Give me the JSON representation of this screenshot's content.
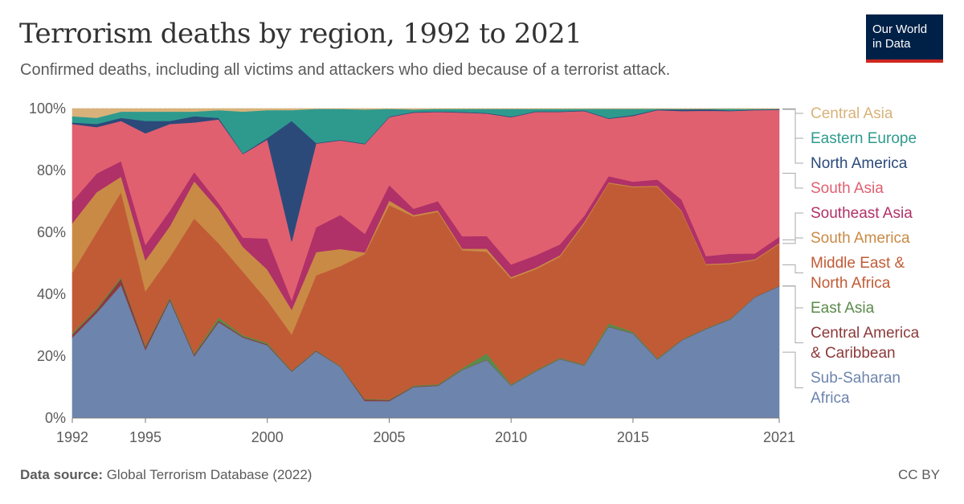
{
  "header": {
    "title": "Terrorism deaths by region, 1992 to 2021",
    "subtitle": "Confirmed deaths, including all victims and attackers who died because of a terrorist attack.",
    "logo_line1": "Our World",
    "logo_line2": "in Data"
  },
  "footer": {
    "source_label": "Data source:",
    "source_text": " Global Terrorism Database (2022)",
    "license": "CC BY"
  },
  "colors": {
    "Sub-Saharan Africa": "#6d84ad",
    "Central America & Caribbean": "#8c3a3a",
    "East Asia": "#5b8a4a",
    "Middle East & North Africa": "#c15b36",
    "South America": "#c98a45",
    "Southeast Asia": "#b03068",
    "South Asia": "#e06070",
    "North America": "#2b4a7a",
    "Eastern Europe": "#2e9a8e",
    "Central Asia": "#d8b27a"
  },
  "chart_data": {
    "type": "area",
    "stacked": true,
    "normalized": true,
    "x": [
      1992,
      1993,
      1994,
      1995,
      1996,
      1997,
      1998,
      1999,
      2000,
      2001,
      2002,
      2003,
      2004,
      2005,
      2006,
      2007,
      2008,
      2009,
      2010,
      2011,
      2012,
      2013,
      2014,
      2015,
      2016,
      2017,
      2018,
      2019,
      2020,
      2021
    ],
    "xticks": [
      "1992",
      "1995",
      "2000",
      "2005",
      "2010",
      "2015",
      "2021"
    ],
    "yticks": [
      "0%",
      "20%",
      "40%",
      "60%",
      "80%",
      "100%"
    ],
    "ylim": [
      0,
      100
    ],
    "series": [
      {
        "name": "Sub-Saharan Africa",
        "label_lines": [
          "Sub-Saharan",
          "Africa"
        ],
        "values": [
          26,
          34,
          43,
          22,
          38,
          20,
          31,
          26,
          23.5,
          15,
          21.5,
          16.5,
          5.5,
          5.5,
          10,
          10.5,
          15.5,
          18.5,
          10.5,
          15,
          19,
          17,
          29.5,
          27.5,
          19,
          25,
          28.5,
          32,
          39,
          42
        ]
      },
      {
        "name": "Central America & Caribbean",
        "label_lines": [
          "Central America",
          "& Caribbean"
        ],
        "values": [
          1,
          1,
          2,
          1,
          0.5,
          0.5,
          0.5,
          0.3,
          0.3,
          0.2,
          0.2,
          0.1,
          0.5,
          0.3,
          0.2,
          0.2,
          0.1,
          0.1,
          0.1,
          0.1,
          0.1,
          0.1,
          0.1,
          0.1,
          0.1,
          0.1,
          0.1,
          0.1,
          0.1,
          0.1
        ]
      },
      {
        "name": "East Asia",
        "label_lines": [
          "East Asia"
        ],
        "values": [
          0.5,
          0.5,
          0.5,
          0.5,
          0.5,
          0.5,
          1,
          0.5,
          0.5,
          0.2,
          0.2,
          0.2,
          0.2,
          0.2,
          0.3,
          0.3,
          0.5,
          2,
          0.3,
          0.3,
          0.3,
          0.3,
          1,
          0.5,
          0.3,
          0.2,
          0.2,
          0.2,
          0.1,
          0.1
        ]
      },
      {
        "name": "Middle East & North Africa",
        "label_lines": [
          "Middle East &",
          "North Africa"
        ],
        "values": [
          19.5,
          24.5,
          27.5,
          17.5,
          13,
          43.5,
          24,
          20.5,
          13.7,
          11.6,
          24.1,
          32.2,
          46.8,
          63,
          54.5,
          56,
          38,
          32.4,
          34.1,
          32.6,
          32.6,
          45.6,
          45.4,
          47,
          55.6,
          41.2,
          20.2,
          17.7,
          11.8,
          13.3
        ]
      },
      {
        "name": "South America",
        "label_lines": [
          "South America"
        ],
        "values": [
          16,
          13,
          5,
          10,
          10,
          12,
          11,
          8,
          10,
          8,
          7.5,
          5.5,
          0.5,
          1.5,
          0.5,
          0.5,
          0.5,
          1,
          0.5,
          0.5,
          0.5,
          0.5,
          0.3,
          0.3,
          0.3,
          0.3,
          0.3,
          0.3,
          0.3,
          0.3
        ]
      },
      {
        "name": "Southeast Asia",
        "label_lines": [
          "Southeast Asia"
        ],
        "values": [
          7,
          6,
          5,
          5,
          5,
          3,
          2,
          3,
          10,
          3,
          8,
          11,
          6,
          5,
          2,
          3,
          4,
          4,
          4,
          4,
          3.5,
          2,
          2,
          1.5,
          2,
          3.5,
          2.5,
          3,
          1.8,
          2
        ]
      },
      {
        "name": "South Asia",
        "label_lines": [
          "South Asia"
        ],
        "values": [
          25,
          15,
          13,
          36,
          28,
          16,
          27,
          27,
          32,
          19,
          27,
          24,
          29,
          22,
          31,
          29,
          39.9,
          39,
          47.5,
          46.3,
          42.7,
          33.9,
          18.6,
          21.4,
          22.5,
          28.6,
          46.5,
          46.3,
          46.3,
          40.5
        ]
      },
      {
        "name": "North America",
        "label_lines": [
          "North America"
        ],
        "values": [
          0.5,
          1,
          1,
          4,
          1,
          2,
          0.5,
          0.2,
          0.5,
          39,
          0.2,
          0.2,
          0.2,
          0.2,
          0.2,
          0.2,
          0.2,
          0.2,
          0.2,
          0.2,
          0.2,
          0.2,
          0.2,
          0.3,
          0.2,
          0.5,
          0.5,
          0.2,
          0.2,
          0.2
        ]
      },
      {
        "name": "Eastern Europe",
        "label_lines": [
          "Eastern Europe"
        ],
        "values": [
          2,
          2,
          2,
          3,
          3,
          1.5,
          2.5,
          13.5,
          9,
          3.5,
          11,
          10,
          11,
          2.5,
          0.8,
          0.8,
          1,
          1.3,
          2.5,
          0.8,
          0.8,
          0.5,
          3,
          2,
          0.2,
          0.2,
          0.1,
          0.5,
          0.2,
          0.1
        ]
      },
      {
        "name": "Central Asia",
        "label_lines": [
          "Central Asia"
        ],
        "values": [
          2.5,
          3,
          1,
          1,
          1,
          1,
          0.5,
          1,
          0.5,
          0.5,
          0.1,
          0.1,
          0.3,
          0.1,
          0.3,
          0.1,
          0.1,
          0.1,
          0.1,
          0.1,
          0.1,
          0.1,
          0.1,
          0.1,
          0.1,
          0.1,
          0.1,
          0.1,
          0.1,
          0.1
        ]
      }
    ]
  }
}
